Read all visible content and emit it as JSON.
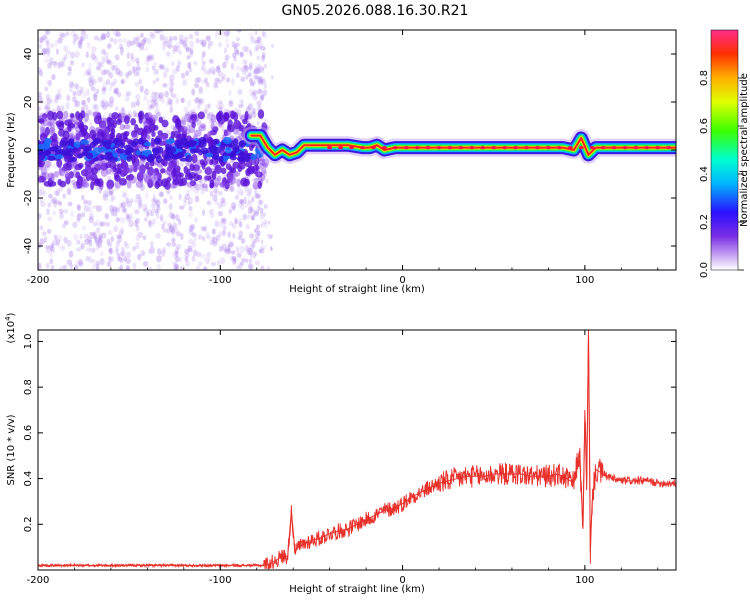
{
  "title": "GN05.2026.088.16.30.R21",
  "colors": {
    "line": "#e8302a",
    "ridge": "#ff2020"
  },
  "chart_data": [
    {
      "type": "heatmap",
      "xlabel": "Height of straight line (km)",
      "ylabel": "Frequency (Hz)",
      "xlim": [
        -200,
        150
      ],
      "ylim": [
        -50,
        50
      ],
      "x_ticks": [
        -200,
        -100,
        0,
        100
      ],
      "y_ticks": [
        -40,
        -20,
        0,
        20,
        40
      ],
      "colorbar": {
        "label": "Normalized spectral amplitude",
        "range": [
          0,
          1
        ],
        "ticks": [
          "0.0",
          "0.2",
          "0.4",
          "0.6",
          "0.8"
        ],
        "colormap": "rainbow"
      },
      "ridge": [
        {
          "x": -83,
          "y": 6
        },
        {
          "x": -78,
          "y": 6
        },
        {
          "x": -74,
          "y": 1
        },
        {
          "x": -70,
          "y": -2
        },
        {
          "x": -66,
          "y": 0
        },
        {
          "x": -62,
          "y": -2
        },
        {
          "x": -58,
          "y": -1
        },
        {
          "x": -54,
          "y": 2
        },
        {
          "x": -48,
          "y": 2
        },
        {
          "x": -40,
          "y": 2
        },
        {
          "x": -30,
          "y": 2
        },
        {
          "x": -22,
          "y": 1
        },
        {
          "x": -18,
          "y": 1
        },
        {
          "x": -14,
          "y": 2
        },
        {
          "x": -10,
          "y": 0
        },
        {
          "x": -4,
          "y": 1
        },
        {
          "x": 0,
          "y": 1
        },
        {
          "x": 10,
          "y": 1
        },
        {
          "x": 20,
          "y": 1
        },
        {
          "x": 30,
          "y": 1
        },
        {
          "x": 40,
          "y": 1
        },
        {
          "x": 50,
          "y": 1
        },
        {
          "x": 60,
          "y": 1
        },
        {
          "x": 70,
          "y": 1
        },
        {
          "x": 80,
          "y": 1
        },
        {
          "x": 88,
          "y": 1
        },
        {
          "x": 94,
          "y": 0
        },
        {
          "x": 98,
          "y": 5
        },
        {
          "x": 102,
          "y": -2
        },
        {
          "x": 106,
          "y": 1
        },
        {
          "x": 110,
          "y": 1
        },
        {
          "x": 120,
          "y": 1
        },
        {
          "x": 130,
          "y": 1
        },
        {
          "x": 140,
          "y": 1
        },
        {
          "x": 150,
          "y": 1
        }
      ],
      "noise_region": {
        "x": [
          -200,
          -75
        ],
        "y": [
          -50,
          50
        ]
      }
    },
    {
      "type": "line",
      "xlabel": "Height of straight line (km)",
      "ylabel": "SNR (10 * v/v)",
      "y_multiplier": "(x10",
      "y_multiplier_exp": "4",
      "y_multiplier_close": ")",
      "xlim": [
        -200,
        150
      ],
      "ylim": [
        0,
        1.05
      ],
      "x_ticks": [
        -200,
        -100,
        0,
        100
      ],
      "y_ticks": [
        0.2,
        0.4,
        0.6,
        0.8,
        1.0
      ],
      "y_tick_labels": [
        "0.2",
        "0.4",
        "0.6",
        "0.8",
        "1.0"
      ],
      "series": [
        {
          "x": [
            -200,
            -180,
            -160,
            -140,
            -120,
            -100,
            -90,
            -80,
            -76,
            -72,
            -68,
            -66,
            -63,
            -61,
            -59,
            -57,
            -55,
            -50,
            -45,
            -40,
            -35,
            -30,
            -25,
            -20,
            -15,
            -10,
            -5,
            0,
            5,
            10,
            15,
            20,
            25,
            30,
            35,
            40,
            45,
            50,
            55,
            60,
            65,
            70,
            75,
            80,
            85,
            90,
            94,
            97,
            99,
            100,
            101,
            102,
            103,
            104,
            106,
            110,
            115,
            120,
            125,
            130,
            135,
            140,
            145,
            150
          ],
          "y": [
            0.02,
            0.02,
            0.02,
            0.02,
            0.02,
            0.02,
            0.02,
            0.02,
            0.02,
            0.03,
            0.05,
            0.06,
            0.06,
            0.26,
            0.08,
            0.1,
            0.11,
            0.13,
            0.14,
            0.16,
            0.17,
            0.18,
            0.2,
            0.22,
            0.24,
            0.26,
            0.27,
            0.29,
            0.32,
            0.34,
            0.36,
            0.38,
            0.39,
            0.4,
            0.41,
            0.41,
            0.41,
            0.42,
            0.42,
            0.42,
            0.42,
            0.41,
            0.41,
            0.41,
            0.42,
            0.4,
            0.38,
            0.52,
            0.18,
            0.7,
            0.35,
            1.05,
            0.08,
            0.3,
            0.44,
            0.42,
            0.4,
            0.39,
            0.39,
            0.39,
            0.39,
            0.38,
            0.38,
            0.38
          ]
        }
      ]
    }
  ]
}
